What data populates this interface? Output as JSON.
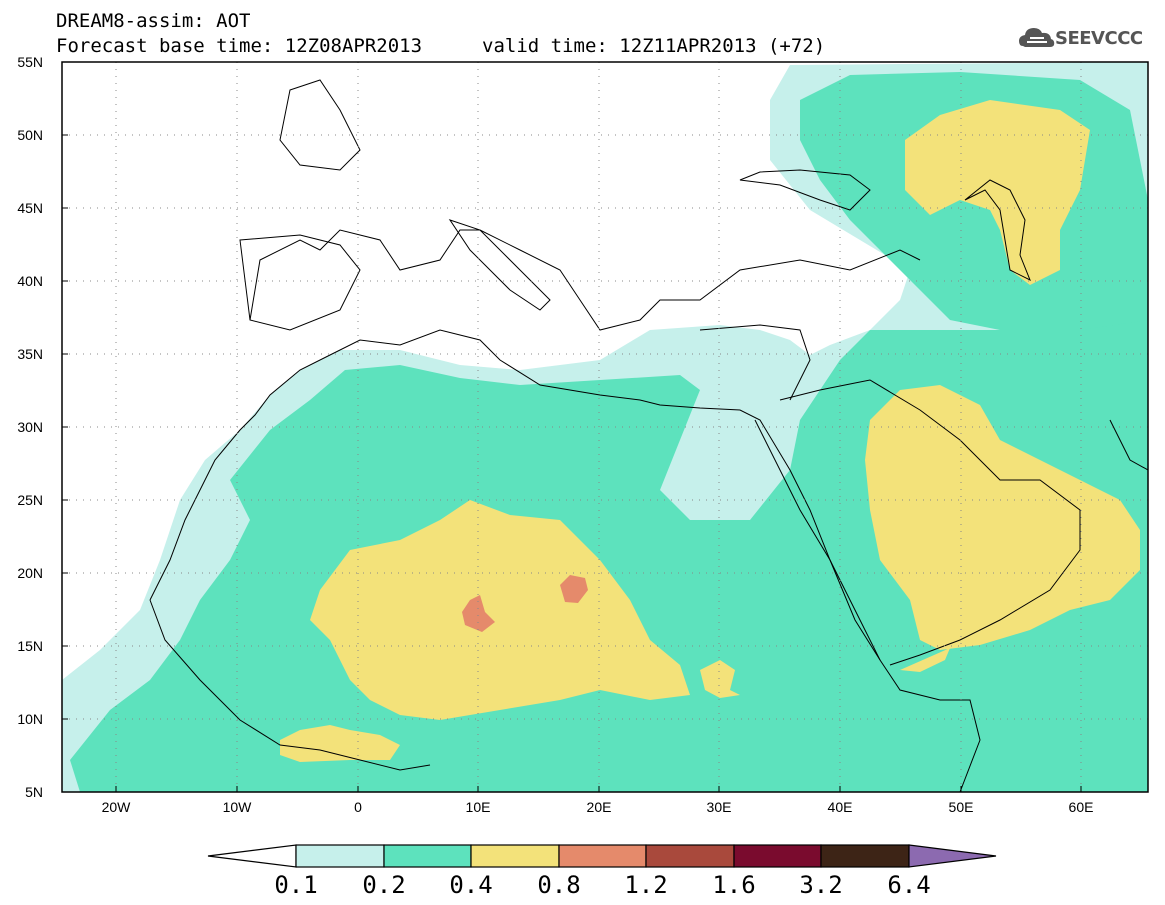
{
  "header": {
    "line1": "DREAM8-assim: AOT",
    "line2_left": "Forecast base time: 12Z08APR2013",
    "line2_right": "valid time: 12Z11APR2013 (+72)"
  },
  "logo": {
    "text": "SEEVCCC",
    "icon": "cloud-icon"
  },
  "map": {
    "lat_labels": [
      "55N",
      "50N",
      "45N",
      "40N",
      "35N",
      "30N",
      "25N",
      "20N",
      "15N",
      "10N",
      "5N"
    ],
    "lon_labels": [
      "20W",
      "10W",
      "0",
      "10E",
      "20E",
      "30E",
      "40E",
      "50E",
      "60E"
    ],
    "lat_range": [
      5,
      55
    ],
    "lon_range": [
      -25,
      65
    ],
    "grid": "dotted",
    "field": "aerosol optical thickness"
  },
  "colorbar": {
    "labels": [
      "0.1",
      "0.2",
      "0.4",
      "0.8",
      "1.2",
      "1.6",
      "3.2",
      "6.4"
    ],
    "colors": [
      "#ffffff",
      "#c6f0eb",
      "#5de2bd",
      "#f3e27a",
      "#e58a6b",
      "#a9493c",
      "#7a0b2e",
      "#3d2416",
      "#8c6ab0"
    ],
    "extend": "both"
  }
}
